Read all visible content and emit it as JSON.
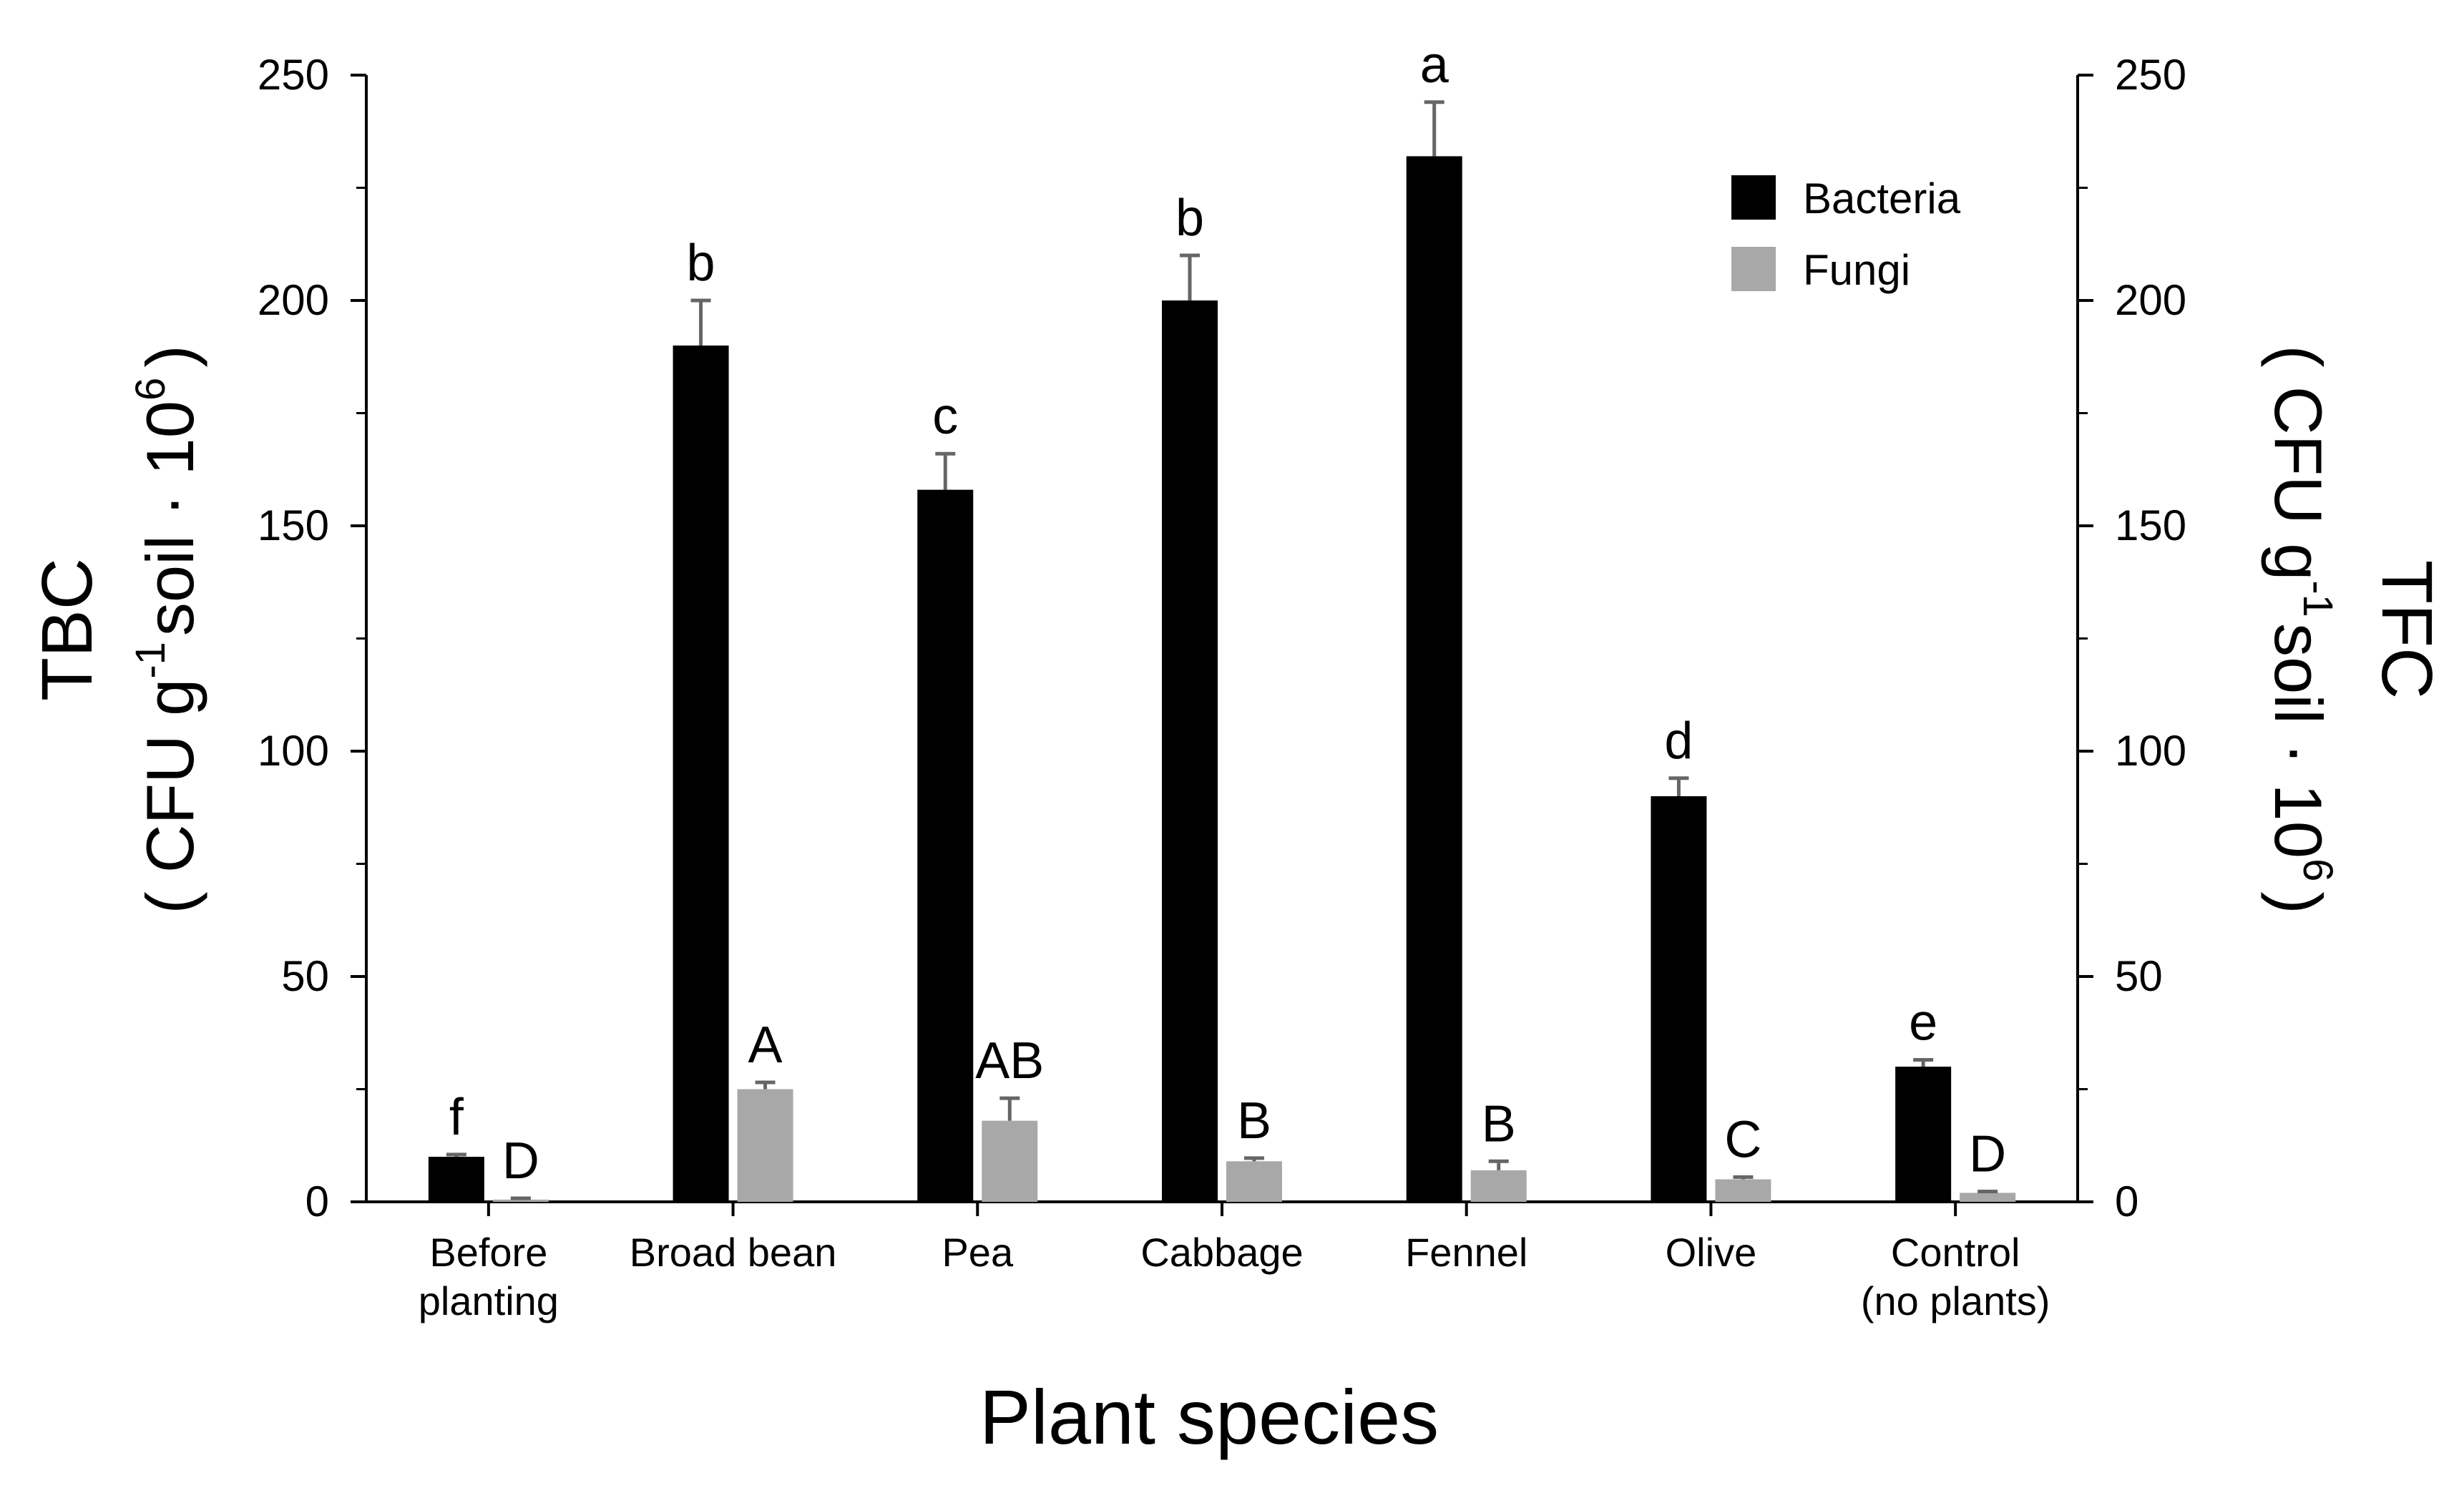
{
  "chart_data": {
    "type": "bar",
    "categories": [
      {
        "line1": "Before",
        "line2": "planting"
      },
      {
        "line1": "Broad bean",
        "line2": ""
      },
      {
        "line1": "Pea",
        "line2": ""
      },
      {
        "line1": "Cabbage",
        "line2": ""
      },
      {
        "line1": "Fennel",
        "line2": ""
      },
      {
        "line1": "Olive",
        "line2": ""
      },
      {
        "line1": "Control",
        "line2": "(no plants)"
      }
    ],
    "series": [
      {
        "name": "Bacteria",
        "color": "#000000",
        "values": [
          10,
          190,
          158,
          200,
          232,
          90,
          30
        ],
        "errors": [
          0.5,
          10,
          8,
          10,
          12,
          4,
          1.5
        ],
        "letters": [
          "f",
          "b",
          "c",
          "b",
          "a",
          "d",
          "e"
        ]
      },
      {
        "name": "Fungi",
        "color": "#a8a8a8",
        "values": [
          0.5,
          25,
          18,
          9,
          7,
          5,
          2
        ],
        "errors": [
          0.3,
          1.5,
          5,
          0.7,
          2,
          0.5,
          0.3
        ],
        "letters": [
          "D",
          "A",
          "AB",
          "B",
          "B",
          "C",
          "D"
        ]
      }
    ],
    "ylim": [
      0,
      250
    ],
    "yticks": [
      0,
      50,
      100,
      150,
      200,
      250
    ],
    "xlabel": "Plant species",
    "ylabel_left": {
      "main": "TBC",
      "sub_open": "( CFU g",
      "sup1": "-1",
      "sub_mid": "soil · 10",
      "sup2": "6",
      "sub_close": ")"
    },
    "ylabel_right": {
      "main": "TFC",
      "sub_open": "( CFU g",
      "sup1": "-1",
      "sub_mid": "soil · 10",
      "sup2": "6",
      "sub_close": ")"
    },
    "legend_position": "top-right",
    "error_color": "#666666"
  }
}
